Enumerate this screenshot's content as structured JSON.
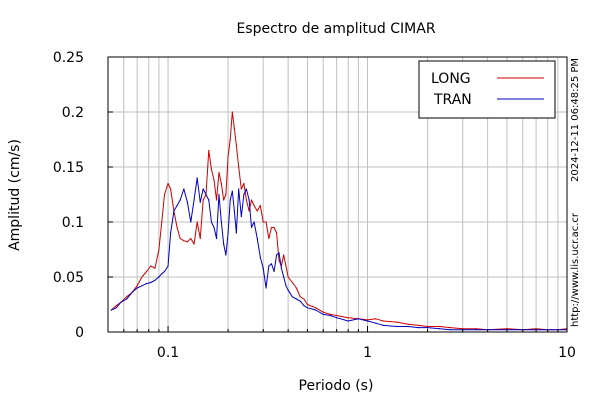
{
  "chart_data": {
    "type": "line",
    "title": "Espectro de amplitud CIMAR",
    "xlabel": "Periodo (s)",
    "ylabel": "Amplitud (cm/s)",
    "x_scale": "log",
    "xlim": [
      0.05,
      10
    ],
    "ylim": [
      0,
      0.25
    ],
    "grid": true,
    "legend_position": "top-right",
    "x_ticks": [
      {
        "value": 0.1,
        "label": "0.1"
      },
      {
        "value": 1,
        "label": "1"
      },
      {
        "value": 10,
        "label": "10"
      }
    ],
    "y_ticks": [
      {
        "value": 0,
        "label": "0"
      },
      {
        "value": 0.05,
        "label": "0.05"
      },
      {
        "value": 0.1,
        "label": "0.1"
      },
      {
        "value": 0.15,
        "label": "0.15"
      },
      {
        "value": 0.2,
        "label": "0.2"
      },
      {
        "value": 0.25,
        "label": "0.25"
      }
    ],
    "series": [
      {
        "name": "LONG",
        "color": "#d00000",
        "x": [
          0.052,
          0.055,
          0.058,
          0.062,
          0.066,
          0.07,
          0.074,
          0.078,
          0.082,
          0.086,
          0.09,
          0.093,
          0.096,
          0.1,
          0.103,
          0.107,
          0.111,
          0.115,
          0.12,
          0.125,
          0.13,
          0.135,
          0.14,
          0.145,
          0.15,
          0.155,
          0.16,
          0.165,
          0.17,
          0.175,
          0.18,
          0.185,
          0.19,
          0.195,
          0.2,
          0.205,
          0.21,
          0.215,
          0.22,
          0.226,
          0.233,
          0.24,
          0.247,
          0.255,
          0.262,
          0.27,
          0.28,
          0.29,
          0.3,
          0.31,
          0.32,
          0.33,
          0.34,
          0.35,
          0.36,
          0.37,
          0.38,
          0.39,
          0.4,
          0.42,
          0.44,
          0.46,
          0.48,
          0.5,
          0.55,
          0.6,
          0.65,
          0.7,
          0.8,
          0.9,
          1.0,
          1.1,
          1.2,
          1.4,
          1.6,
          1.8,
          2.0,
          2.3,
          2.6,
          3.0,
          3.5,
          4.0,
          5.0,
          6.0,
          7.0,
          8.0,
          9.0,
          10.0
        ],
        "values": [
          0.02,
          0.024,
          0.027,
          0.032,
          0.036,
          0.042,
          0.05,
          0.055,
          0.06,
          0.058,
          0.075,
          0.1,
          0.125,
          0.135,
          0.13,
          0.11,
          0.095,
          0.085,
          0.083,
          0.082,
          0.085,
          0.08,
          0.1,
          0.085,
          0.12,
          0.125,
          0.165,
          0.148,
          0.138,
          0.12,
          0.145,
          0.135,
          0.12,
          0.125,
          0.16,
          0.175,
          0.2,
          0.185,
          0.17,
          0.15,
          0.13,
          0.135,
          0.12,
          0.11,
          0.12,
          0.115,
          0.11,
          0.115,
          0.1,
          0.1,
          0.085,
          0.095,
          0.095,
          0.09,
          0.065,
          0.06,
          0.07,
          0.06,
          0.05,
          0.045,
          0.04,
          0.032,
          0.03,
          0.025,
          0.022,
          0.018,
          0.016,
          0.015,
          0.013,
          0.012,
          0.011,
          0.012,
          0.01,
          0.009,
          0.007,
          0.006,
          0.005,
          0.005,
          0.004,
          0.003,
          0.003,
          0.002,
          0.003,
          0.002,
          0.003,
          0.002,
          0.002,
          0.003
        ]
      },
      {
        "name": "TRAN",
        "color": "#0000c0",
        "x": [
          0.052,
          0.055,
          0.058,
          0.062,
          0.066,
          0.07,
          0.074,
          0.078,
          0.082,
          0.086,
          0.09,
          0.093,
          0.096,
          0.1,
          0.103,
          0.107,
          0.111,
          0.115,
          0.12,
          0.125,
          0.13,
          0.135,
          0.14,
          0.145,
          0.15,
          0.155,
          0.16,
          0.165,
          0.17,
          0.175,
          0.18,
          0.185,
          0.19,
          0.195,
          0.2,
          0.205,
          0.21,
          0.215,
          0.22,
          0.226,
          0.233,
          0.24,
          0.247,
          0.255,
          0.262,
          0.27,
          0.28,
          0.29,
          0.3,
          0.31,
          0.32,
          0.33,
          0.34,
          0.35,
          0.36,
          0.37,
          0.38,
          0.39,
          0.4,
          0.42,
          0.44,
          0.46,
          0.48,
          0.5,
          0.55,
          0.6,
          0.65,
          0.7,
          0.8,
          0.9,
          1.0,
          1.1,
          1.2,
          1.4,
          1.6,
          1.8,
          2.0,
          2.3,
          2.6,
          3.0,
          3.5,
          4.0,
          5.0,
          6.0,
          7.0,
          8.0,
          9.0,
          10.0
        ],
        "values": [
          0.02,
          0.022,
          0.027,
          0.03,
          0.036,
          0.04,
          0.042,
          0.044,
          0.045,
          0.047,
          0.05,
          0.053,
          0.055,
          0.06,
          0.09,
          0.11,
          0.115,
          0.12,
          0.13,
          0.118,
          0.1,
          0.12,
          0.14,
          0.118,
          0.13,
          0.125,
          0.12,
          0.1,
          0.095,
          0.085,
          0.125,
          0.1,
          0.08,
          0.07,
          0.09,
          0.12,
          0.128,
          0.11,
          0.09,
          0.13,
          0.105,
          0.125,
          0.13,
          0.12,
          0.095,
          0.1,
          0.085,
          0.068,
          0.058,
          0.04,
          0.06,
          0.062,
          0.055,
          0.07,
          0.072,
          0.058,
          0.05,
          0.042,
          0.038,
          0.032,
          0.03,
          0.028,
          0.024,
          0.022,
          0.02,
          0.016,
          0.015,
          0.013,
          0.01,
          0.012,
          0.01,
          0.008,
          0.006,
          0.005,
          0.005,
          0.004,
          0.004,
          0.003,
          0.002,
          0.002,
          0.002,
          0.002,
          0.002,
          0.002,
          0.002,
          0.002,
          0.002,
          0.002
        ]
      }
    ]
  },
  "side_text": {
    "timestamp": "2024-12-11 06:48:25 PM",
    "url": "http://www.lis.ucr.ac.cr"
  }
}
